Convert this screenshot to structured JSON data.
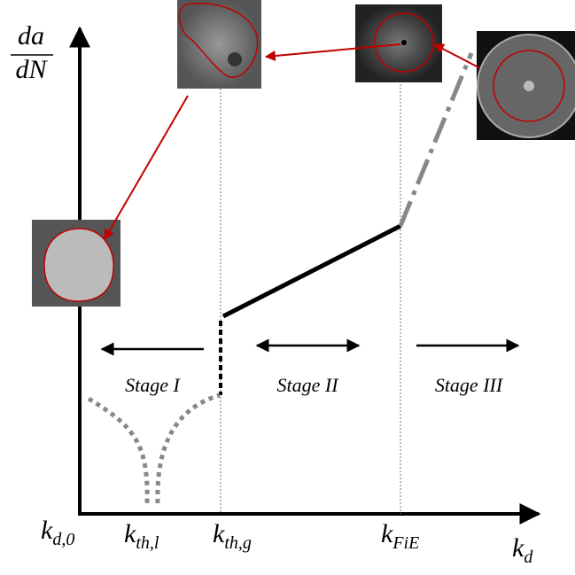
{
  "y_axis_label": {
    "numerator": "da",
    "denominator": "dN"
  },
  "x_axis_label": {
    "main": "k",
    "sub": "d"
  },
  "ticks": [
    {
      "main": "k",
      "sub": "d,0"
    },
    {
      "main": "k",
      "sub": "th,l"
    },
    {
      "main": "k",
      "sub": "th,g"
    },
    {
      "main": "k",
      "sub": "FiE"
    }
  ],
  "stages": [
    "Stage I",
    "Stage II",
    "Stage III"
  ]
}
